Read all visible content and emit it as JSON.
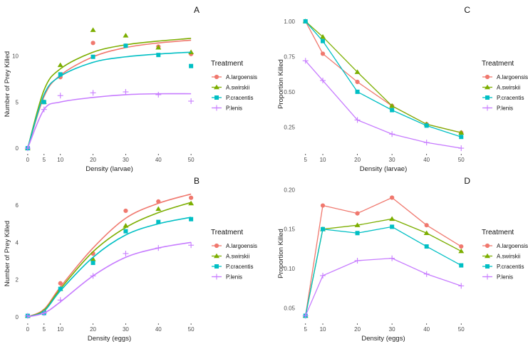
{
  "colors": {
    "A.largoensis": "#F0786E",
    "A.swirskii": "#7CAE00",
    "P.cracentis": "#00BFC4",
    "P.lenis": "#C77CFF"
  },
  "chart_data": [
    {
      "panel": "A",
      "type": "scatter",
      "xlabel": "Density (larvae)",
      "ylabel": "Number of Prey Killed",
      "xticks": [
        0,
        5,
        10,
        20,
        30,
        40,
        50
      ],
      "yticks": [
        0,
        5,
        10
      ],
      "xlim": [
        -1.5,
        51.5
      ],
      "ylim": [
        -0.3,
        14.2
      ],
      "legend_title": "Treatment",
      "legend_placement": "right",
      "grid": false,
      "series": [
        {
          "name": "A.largoensis",
          "marker": "circle",
          "x": [
            0,
            5,
            10,
            20,
            30,
            40,
            50
          ],
          "points": [
            0,
            5.0,
            7.7,
            11.4,
            11.1,
            11.0,
            10.2
          ],
          "fit": [
            0,
            5.6,
            7.9,
            9.9,
            10.9,
            11.4,
            11.7
          ]
        },
        {
          "name": "A.swirskii",
          "marker": "triangle",
          "x": [
            0,
            5,
            10,
            20,
            30,
            40,
            50
          ],
          "points": [
            0,
            5.0,
            9.0,
            12.8,
            12.2,
            10.9,
            10.4
          ],
          "fit": [
            0,
            6.3,
            8.6,
            10.4,
            11.2,
            11.6,
            11.9
          ]
        },
        {
          "name": "P.cracentis",
          "marker": "square",
          "x": [
            0,
            5,
            10,
            20,
            30,
            40,
            50
          ],
          "points": [
            0,
            5.0,
            8.0,
            9.9,
            11.1,
            10.1,
            8.9
          ],
          "fit": [
            0,
            5.8,
            7.8,
            9.3,
            9.9,
            10.2,
            10.4
          ]
        },
        {
          "name": "P.lenis",
          "marker": "plus",
          "x": [
            0,
            5,
            10,
            20,
            30,
            40,
            50
          ],
          "points": [
            0,
            4.2,
            5.7,
            6.0,
            6.1,
            5.8,
            5.1
          ],
          "fit": [
            0,
            4.2,
            5.0,
            5.5,
            5.8,
            5.9,
            5.9
          ]
        }
      ]
    },
    {
      "panel": "B",
      "type": "scatter",
      "xlabel": "Density (eggs)",
      "ylabel": "Number of Prey Killed",
      "xticks": [
        0,
        5,
        10,
        20,
        30,
        40,
        50
      ],
      "yticks": [
        0,
        2,
        4,
        6
      ],
      "xlim": [
        -1.5,
        51.5
      ],
      "ylim": [
        -0.2,
        7.0
      ],
      "legend_title": "Treatment",
      "legend_placement": "right",
      "grid": false,
      "series": [
        {
          "name": "A.largoensis",
          "marker": "circle",
          "x": [
            0,
            5,
            10,
            20,
            30,
            40,
            50
          ],
          "points": [
            0.05,
            0.3,
            1.8,
            3.4,
            5.7,
            6.2,
            6.4
          ],
          "fit": [
            0,
            0.4,
            1.6,
            3.7,
            5.3,
            6.1,
            6.6
          ]
        },
        {
          "name": "A.swirskii",
          "marker": "triangle",
          "x": [
            0,
            5,
            10,
            20,
            30,
            40,
            50
          ],
          "points": [
            0.05,
            0.3,
            1.5,
            3.1,
            4.9,
            5.8,
            6.1
          ],
          "fit": [
            0,
            0.35,
            1.5,
            3.5,
            4.8,
            5.6,
            6.15
          ]
        },
        {
          "name": "P.cracentis",
          "marker": "square",
          "x": [
            0,
            5,
            10,
            20,
            30,
            40,
            50
          ],
          "points": [
            0.05,
            0.2,
            1.5,
            2.9,
            4.6,
            5.1,
            5.25
          ],
          "fit": [
            0,
            0.3,
            1.4,
            3.2,
            4.4,
            5.0,
            5.35
          ]
        },
        {
          "name": "P.lenis",
          "marker": "plus",
          "x": [
            0,
            5,
            10,
            20,
            30,
            40,
            50
          ],
          "points": [
            0.05,
            0.2,
            0.9,
            2.2,
            3.4,
            3.7,
            3.85
          ],
          "fit": [
            0,
            0.2,
            0.8,
            2.2,
            3.2,
            3.7,
            4.0
          ]
        }
      ]
    },
    {
      "panel": "C",
      "type": "line",
      "xlabel": "Density (larvae)",
      "ylabel": "Proportion Killed",
      "xticks": [
        5,
        10,
        20,
        30,
        40,
        50
      ],
      "yticks": [
        0.25,
        0.5,
        0.75,
        1.0
      ],
      "yticklabels": [
        "0.25",
        "0.50",
        "0.75",
        "1.00"
      ],
      "xlim": [
        3.2,
        51.8
      ],
      "ylim": [
        0.08,
        1.03
      ],
      "legend_title": "Treatment",
      "legend_placement": "right",
      "grid": false,
      "series": [
        {
          "name": "A.largoensis",
          "marker": "circle",
          "x": [
            5,
            10,
            20,
            30,
            40,
            50
          ],
          "values": [
            1.0,
            0.77,
            0.57,
            0.4,
            0.27,
            0.21
          ]
        },
        {
          "name": "A.swirskii",
          "marker": "triangle",
          "x": [
            5,
            10,
            20,
            30,
            40,
            50
          ],
          "values": [
            1.0,
            0.89,
            0.64,
            0.4,
            0.27,
            0.21
          ]
        },
        {
          "name": "P.cracentis",
          "marker": "square",
          "x": [
            5,
            10,
            20,
            30,
            40,
            50
          ],
          "values": [
            1.0,
            0.86,
            0.5,
            0.37,
            0.26,
            0.18
          ]
        },
        {
          "name": "P.lenis",
          "marker": "plus",
          "x": [
            5,
            10,
            20,
            30,
            40,
            50
          ],
          "values": [
            0.72,
            0.58,
            0.3,
            0.2,
            0.14,
            0.1
          ]
        }
      ]
    },
    {
      "panel": "D",
      "type": "line",
      "xlabel": "Density (eggs)",
      "ylabel": "Proportion Killed",
      "xticks": [
        5,
        10,
        20,
        30,
        40,
        50
      ],
      "yticks": [
        0.05,
        0.1,
        0.15,
        0.2
      ],
      "yticklabels": [
        "0.05",
        "0.10",
        "0.15",
        "0.20"
      ],
      "xlim": [
        3.2,
        51.8
      ],
      "ylim": [
        0.034,
        0.204
      ],
      "legend_title": "Treatment",
      "legend_placement": "right",
      "grid": false,
      "series": [
        {
          "name": "A.largoensis",
          "marker": "circle",
          "x": [
            5,
            10,
            20,
            30,
            40,
            50
          ],
          "values": [
            0.04,
            0.18,
            0.17,
            0.19,
            0.155,
            0.128
          ]
        },
        {
          "name": "A.swirskii",
          "marker": "triangle",
          "x": [
            5,
            10,
            20,
            30,
            40,
            50
          ],
          "values": [
            0.04,
            0.15,
            0.155,
            0.163,
            0.145,
            0.122
          ]
        },
        {
          "name": "P.cracentis",
          "marker": "square",
          "x": [
            5,
            10,
            20,
            30,
            40,
            50
          ],
          "values": [
            0.04,
            0.15,
            0.145,
            0.153,
            0.128,
            0.104
          ]
        },
        {
          "name": "P.lenis",
          "marker": "plus",
          "x": [
            5,
            10,
            20,
            30,
            40,
            50
          ],
          "values": [
            0.04,
            0.091,
            0.11,
            0.113,
            0.093,
            0.078
          ]
        }
      ]
    }
  ]
}
